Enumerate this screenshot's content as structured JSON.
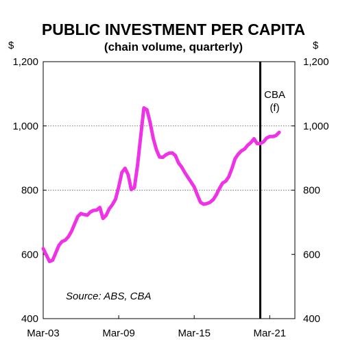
{
  "chart_data": {
    "type": "line",
    "title": "PUBLIC INVESTMENT PER CAPITA",
    "subtitle": "(chain volume, quarterly)",
    "y_unit_left": "$",
    "y_unit_right": "$",
    "ylim": [
      400,
      1200
    ],
    "y_ticks": [
      400,
      600,
      800,
      1000,
      1200
    ],
    "y_tick_labels": [
      "400",
      "600",
      "800",
      "1,000",
      "1,200"
    ],
    "x_tick_labels": [
      "Mar-03",
      "Mar-09",
      "Mar-15",
      "Mar-21"
    ],
    "x_tick_positions": [
      2003.0,
      2009.0,
      2015.0,
      2021.0
    ],
    "xlim": [
      2003.0,
      2023.0
    ],
    "grid": "horizontal dotted at 800 and 1000",
    "forecast_marker": {
      "x": 2020.25,
      "label_line1": "CBA",
      "label_line2": "(f)"
    },
    "source": "Source: ABS, CBA",
    "line_color": "#f032e6",
    "series": [
      {
        "x": [
          2003.0,
          2003.25,
          2003.5,
          2003.75,
          2004.0,
          2004.25,
          2004.5,
          2004.75,
          2005.0,
          2005.25,
          2005.5,
          2005.75,
          2006.0,
          2006.25,
          2006.5,
          2006.75,
          2007.0,
          2007.25,
          2007.5,
          2007.75,
          2008.0,
          2008.25,
          2008.5,
          2008.75,
          2009.0,
          2009.25,
          2009.5,
          2009.75,
          2010.0,
          2010.25,
          2010.5,
          2010.75,
          2011.0,
          2011.25,
          2011.5,
          2011.75,
          2012.0,
          2012.25,
          2012.5,
          2012.75,
          2013.0,
          2013.25,
          2013.5,
          2013.75,
          2014.0,
          2014.25,
          2014.5,
          2014.75,
          2015.0,
          2015.25,
          2015.5,
          2015.75,
          2016.0,
          2016.25,
          2016.5,
          2016.75,
          2017.0,
          2017.25,
          2017.5,
          2017.75,
          2018.0,
          2018.25,
          2018.5,
          2018.75,
          2019.0,
          2019.25,
          2019.5,
          2019.75,
          2020.0,
          2020.25,
          2020.5,
          2020.75,
          2021.0,
          2021.25,
          2021.5,
          2021.75
        ],
        "values": [
          618,
          598,
          578,
          582,
          605,
          628,
          640,
          644,
          655,
          672,
          695,
          718,
          727,
          724,
          722,
          732,
          737,
          738,
          746,
          712,
          722,
          742,
          755,
          772,
          810,
          855,
          868,
          848,
          802,
          808,
          878,
          968,
          1056,
          1050,
          1010,
          960,
          925,
          903,
          902,
          910,
          915,
          916,
          908,
          885,
          872,
          855,
          840,
          825,
          810,
          785,
          762,
          756,
          758,
          762,
          770,
          785,
          805,
          822,
          828,
          842,
          868,
          898,
          912,
          922,
          928,
          940,
          948,
          960,
          945,
          945,
          950,
          962,
          967,
          967,
          970,
          980
        ]
      }
    ]
  }
}
